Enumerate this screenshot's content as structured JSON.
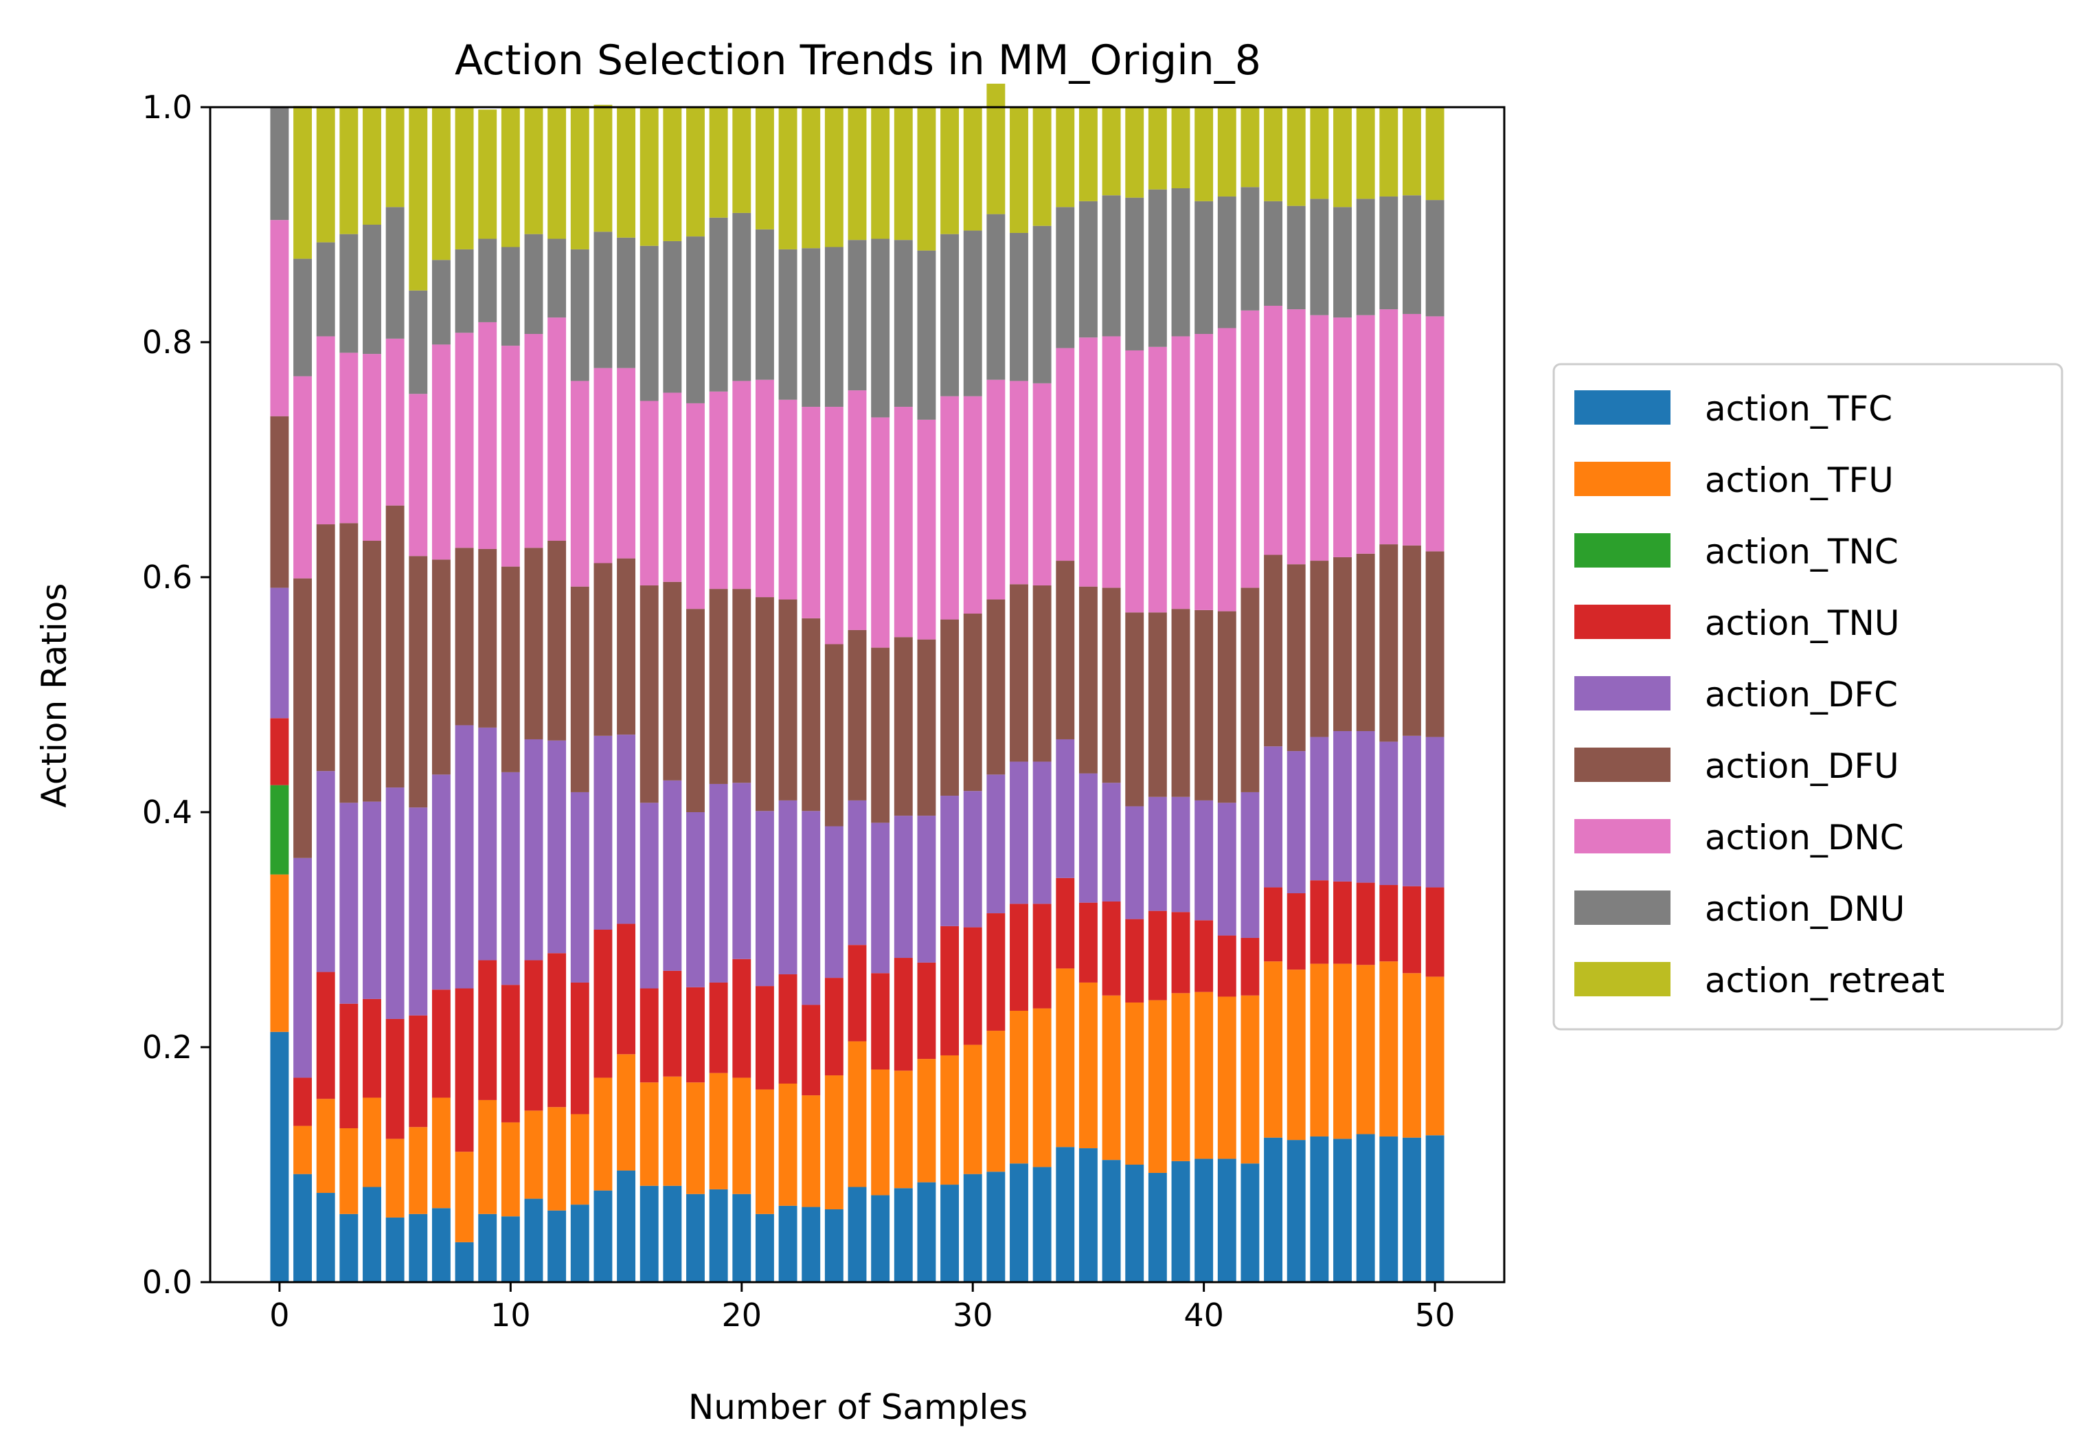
{
  "chart_data": {
    "type": "bar",
    "stacked": true,
    "title": "Action Selection Trends in MM_Origin_8",
    "xlabel": "Number of Samples",
    "ylabel": "Action Ratios",
    "xlim": [
      -3,
      53
    ],
    "ylim": [
      0,
      1
    ],
    "xticks": [
      0,
      10,
      20,
      30,
      40,
      50
    ],
    "yticks": [
      0.0,
      0.2,
      0.4,
      0.6,
      0.8,
      1.0
    ],
    "ytick_labels": [
      "0.0",
      "0.2",
      "0.4",
      "0.6",
      "0.8",
      "1.0"
    ],
    "legend_position": "right-outside",
    "grid": false,
    "x": [
      0,
      1,
      2,
      3,
      4,
      5,
      6,
      7,
      8,
      9,
      10,
      11,
      12,
      13,
      14,
      15,
      16,
      17,
      18,
      19,
      20,
      21,
      22,
      23,
      24,
      25,
      26,
      27,
      28,
      29,
      30,
      31,
      32,
      33,
      34,
      35,
      36,
      37,
      38,
      39,
      40,
      41,
      42,
      43,
      44,
      45,
      46,
      47,
      48,
      49,
      50
    ],
    "series": [
      {
        "name": "action_TFC",
        "color": "#1f77b4",
        "values": [
          0.213,
          0.092,
          0.076,
          0.058,
          0.081,
          0.055,
          0.058,
          0.063,
          0.034,
          0.058,
          0.056,
          0.071,
          0.061,
          0.066,
          0.078,
          0.095,
          0.082,
          0.082,
          0.075,
          0.079,
          0.075,
          0.058,
          0.065,
          0.064,
          0.062,
          0.081,
          0.074,
          0.08,
          0.085,
          0.083,
          0.092,
          0.094,
          0.101,
          0.098,
          0.115,
          0.114,
          0.104,
          0.1,
          0.093,
          0.103,
          0.105,
          0.105,
          0.101,
          0.123,
          0.121,
          0.124,
          0.122,
          0.126,
          0.124,
          0.123,
          0.125
        ]
      },
      {
        "name": "action_TFU",
        "color": "#ff7f0e",
        "values": [
          0.134,
          0.041,
          0.08,
          0.073,
          0.076,
          0.067,
          0.074,
          0.094,
          0.077,
          0.097,
          0.08,
          0.075,
          0.088,
          0.077,
          0.096,
          0.099,
          0.088,
          0.093,
          0.095,
          0.099,
          0.099,
          0.106,
          0.104,
          0.095,
          0.114,
          0.124,
          0.107,
          0.1,
          0.105,
          0.11,
          0.11,
          0.12,
          0.13,
          0.135,
          0.152,
          0.141,
          0.14,
          0.138,
          0.147,
          0.143,
          0.142,
          0.138,
          0.143,
          0.15,
          0.145,
          0.147,
          0.149,
          0.144,
          0.149,
          0.14,
          0.135
        ]
      },
      {
        "name": "action_TNC",
        "color": "#2ca02c",
        "values": [
          0.076,
          0,
          0,
          0,
          0,
          0,
          0,
          0,
          0,
          0,
          0,
          0,
          0,
          0,
          0,
          0,
          0,
          0,
          0,
          0,
          0,
          0,
          0,
          0,
          0,
          0,
          0,
          0,
          0,
          0,
          0,
          0,
          0,
          0,
          0,
          0,
          0,
          0,
          0,
          0,
          0,
          0,
          0,
          0,
          0,
          0,
          0,
          0,
          0,
          0,
          0
        ]
      },
      {
        "name": "action_TNU",
        "color": "#d62728",
        "values": [
          0.057,
          0.041,
          0.108,
          0.106,
          0.084,
          0.102,
          0.095,
          0.092,
          0.139,
          0.119,
          0.117,
          0.128,
          0.131,
          0.112,
          0.126,
          0.111,
          0.08,
          0.09,
          0.081,
          0.077,
          0.101,
          0.088,
          0.093,
          0.077,
          0.083,
          0.082,
          0.082,
          0.096,
          0.082,
          0.11,
          0.1,
          0.1,
          0.091,
          0.089,
          0.077,
          0.068,
          0.08,
          0.071,
          0.076,
          0.069,
          0.061,
          0.052,
          0.049,
          0.063,
          0.065,
          0.071,
          0.07,
          0.07,
          0.065,
          0.074,
          0.076
        ]
      },
      {
        "name": "action_DFC",
        "color": "#9467bd",
        "values": [
          0.111,
          0.187,
          0.171,
          0.171,
          0.168,
          0.197,
          0.177,
          0.183,
          0.224,
          0.198,
          0.181,
          0.188,
          0.181,
          0.162,
          0.165,
          0.161,
          0.158,
          0.162,
          0.149,
          0.169,
          0.15,
          0.149,
          0.148,
          0.165,
          0.129,
          0.123,
          0.128,
          0.121,
          0.125,
          0.111,
          0.116,
          0.118,
          0.121,
          0.121,
          0.118,
          0.11,
          0.101,
          0.096,
          0.097,
          0.098,
          0.102,
          0.113,
          0.124,
          0.12,
          0.121,
          0.122,
          0.128,
          0.129,
          0.122,
          0.128,
          0.128
        ]
      },
      {
        "name": "action_DFU",
        "color": "#8c564b",
        "values": [
          0.146,
          0.238,
          0.21,
          0.238,
          0.222,
          0.24,
          0.214,
          0.183,
          0.151,
          0.152,
          0.175,
          0.163,
          0.17,
          0.175,
          0.147,
          0.15,
          0.185,
          0.169,
          0.173,
          0.166,
          0.165,
          0.182,
          0.171,
          0.164,
          0.155,
          0.145,
          0.149,
          0.152,
          0.15,
          0.15,
          0.151,
          0.149,
          0.151,
          0.15,
          0.152,
          0.159,
          0.166,
          0.165,
          0.157,
          0.16,
          0.162,
          0.163,
          0.174,
          0.163,
          0.159,
          0.15,
          0.148,
          0.151,
          0.168,
          0.162,
          0.158
        ]
      },
      {
        "name": "action_DNC",
        "color": "#e377c2",
        "values": [
          0.167,
          0.172,
          0.16,
          0.145,
          0.159,
          0.142,
          0.138,
          0.183,
          0.183,
          0.193,
          0.188,
          0.182,
          0.19,
          0.175,
          0.166,
          0.162,
          0.157,
          0.161,
          0.175,
          0.168,
          0.177,
          0.185,
          0.17,
          0.18,
          0.202,
          0.204,
          0.196,
          0.196,
          0.187,
          0.19,
          0.185,
          0.187,
          0.173,
          0.172,
          0.181,
          0.212,
          0.214,
          0.223,
          0.226,
          0.232,
          0.235,
          0.241,
          0.236,
          0.212,
          0.217,
          0.209,
          0.204,
          0.203,
          0.2,
          0.197,
          0.2
        ]
      },
      {
        "name": "action_DNU",
        "color": "#7f7f7f",
        "values": [
          0.096,
          0.1,
          0.08,
          0.101,
          0.11,
          0.112,
          0.088,
          0.072,
          0.071,
          0.071,
          0.084,
          0.085,
          0.067,
          0.112,
          0.116,
          0.111,
          0.132,
          0.129,
          0.142,
          0.148,
          0.143,
          0.128,
          0.128,
          0.135,
          0.136,
          0.128,
          0.152,
          0.142,
          0.144,
          0.138,
          0.141,
          0.141,
          0.126,
          0.134,
          0.12,
          0.116,
          0.12,
          0.13,
          0.134,
          0.126,
          0.113,
          0.112,
          0.105,
          0.089,
          0.088,
          0.099,
          0.094,
          0.099,
          0.096,
          0.101,
          0.099
        ]
      },
      {
        "name": "action_retreat",
        "color": "#bcbd22",
        "values": [
          0.0,
          0.13,
          0.115,
          0.108,
          0.1,
          0.085,
          0.156,
          0.13,
          0.121,
          0.11,
          0.119,
          0.108,
          0.112,
          0.122,
          0.108,
          0.111,
          0.118,
          0.114,
          0.11,
          0.094,
          0.09,
          0.104,
          0.121,
          0.12,
          0.119,
          0.113,
          0.112,
          0.113,
          0.122,
          0.108,
          0.105,
          0.111,
          0.107,
          0.101,
          0.085,
          0.08,
          0.075,
          0.077,
          0.07,
          0.069,
          0.08,
          0.076,
          0.068,
          0.08,
          0.084,
          0.078,
          0.085,
          0.078,
          0.076,
          0.075,
          0.079
        ]
      }
    ]
  }
}
